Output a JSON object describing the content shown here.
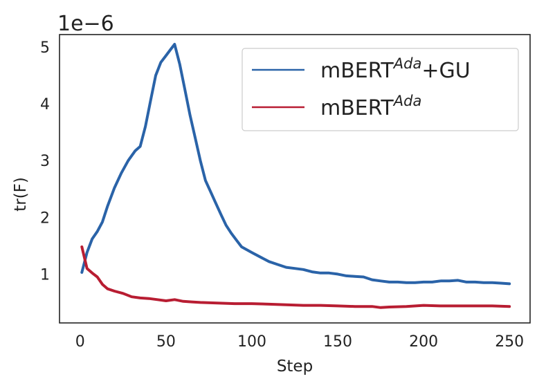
{
  "chart_data": {
    "type": "line",
    "title": "",
    "xlabel": "Step",
    "ylabel": "tr(F)",
    "offset_text": "1e−6",
    "xlim": [
      -12,
      262
    ],
    "ylim": [
      0.14,
      5.22
    ],
    "xticks": [
      0,
      50,
      100,
      150,
      200,
      250
    ],
    "xtick_labels": [
      "0",
      "50",
      "100",
      "150",
      "200",
      "250"
    ],
    "yticks": [
      1,
      2,
      3,
      4,
      5
    ],
    "ytick_labels": [
      "1",
      "2",
      "3",
      "4",
      "5"
    ],
    "grid": false,
    "legend_position": "top-right",
    "series": [
      {
        "name": "mBERT+GU",
        "legend_base": "mBERT",
        "legend_sup": "Ada",
        "legend_suffix": "+GU",
        "color": "#2a63a8",
        "x": [
          1,
          4,
          7,
          10,
          13,
          16,
          20,
          24,
          28,
          32,
          35,
          38,
          41,
          44,
          47,
          50,
          53,
          55,
          58,
          61,
          64,
          67,
          70,
          73,
          76,
          79,
          82,
          85,
          88,
          91,
          94,
          100,
          105,
          110,
          115,
          120,
          125,
          130,
          135,
          140,
          145,
          150,
          155,
          160,
          165,
          170,
          175,
          180,
          185,
          190,
          195,
          200,
          205,
          210,
          215,
          220,
          225,
          230,
          235,
          240,
          245,
          250
        ],
        "y": [
          1.03,
          1.38,
          1.62,
          1.75,
          1.92,
          2.2,
          2.52,
          2.78,
          3.0,
          3.17,
          3.25,
          3.6,
          4.05,
          4.5,
          4.73,
          4.85,
          4.97,
          5.05,
          4.7,
          4.25,
          3.8,
          3.4,
          3.0,
          2.65,
          2.45,
          2.25,
          2.05,
          1.86,
          1.72,
          1.6,
          1.48,
          1.38,
          1.3,
          1.22,
          1.17,
          1.12,
          1.1,
          1.08,
          1.04,
          1.02,
          1.02,
          1.0,
          0.97,
          0.96,
          0.95,
          0.9,
          0.88,
          0.86,
          0.86,
          0.85,
          0.85,
          0.86,
          0.86,
          0.88,
          0.88,
          0.89,
          0.86,
          0.86,
          0.85,
          0.85,
          0.84,
          0.83
        ]
      },
      {
        "name": "mBERT",
        "legend_base": "mBERT",
        "legend_sup": "Ada",
        "legend_suffix": "",
        "color": "#b81d32",
        "x": [
          1,
          4,
          7,
          10,
          13,
          16,
          20,
          25,
          30,
          35,
          40,
          45,
          50,
          55,
          60,
          65,
          70,
          80,
          90,
          100,
          110,
          120,
          130,
          140,
          150,
          160,
          170,
          175,
          180,
          190,
          200,
          210,
          220,
          230,
          240,
          250
        ],
        "y": [
          1.48,
          1.1,
          1.02,
          0.95,
          0.82,
          0.74,
          0.7,
          0.66,
          0.6,
          0.58,
          0.57,
          0.55,
          0.53,
          0.55,
          0.52,
          0.51,
          0.5,
          0.49,
          0.48,
          0.48,
          0.47,
          0.46,
          0.45,
          0.45,
          0.44,
          0.43,
          0.43,
          0.41,
          0.42,
          0.43,
          0.45,
          0.44,
          0.44,
          0.44,
          0.44,
          0.43
        ]
      }
    ]
  }
}
